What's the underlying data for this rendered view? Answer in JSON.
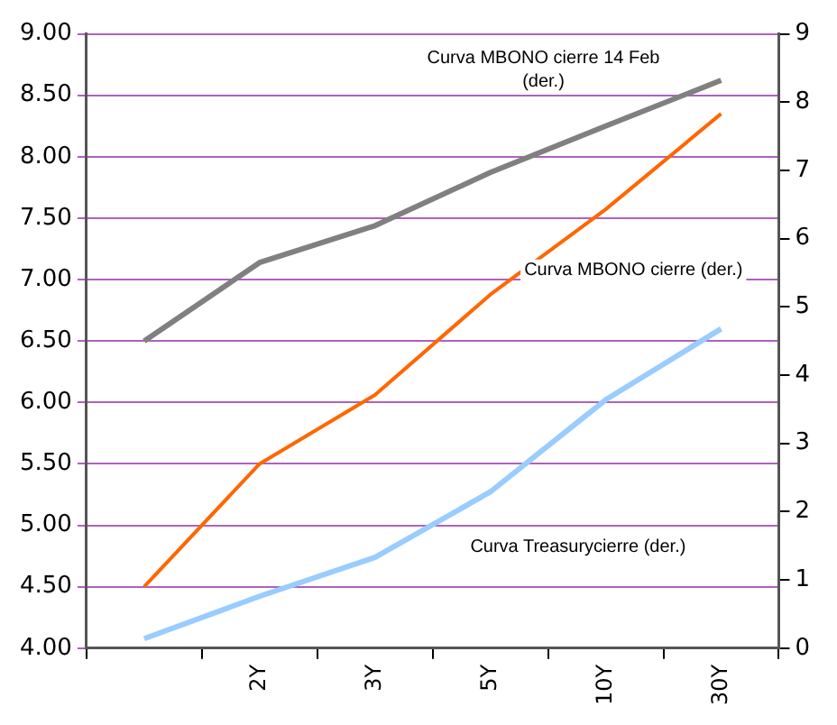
{
  "chart_data": {
    "type": "line",
    "categories": [
      null,
      "2Y",
      "3Y",
      "5Y",
      "10Y",
      "30Y"
    ],
    "series": [
      {
        "name": "Curva MBONO cierre 14 Feb (der.)",
        "color": "#808080",
        "axis": "y2",
        "values": [
          4.5,
          5.65,
          6.19,
          6.97,
          7.65,
          8.32
        ]
      },
      {
        "name": "Curva MBONO cierre (der.)",
        "color": "#ff6600",
        "axis": "y2",
        "values": [
          0.9,
          2.7,
          3.71,
          5.18,
          6.43,
          7.83
        ]
      },
      {
        "name": "Curva Treasurycierre (der.)",
        "color": "#99ccff",
        "axis": "y2",
        "values": [
          0.14,
          0.76,
          1.33,
          2.29,
          3.64,
          4.68
        ]
      }
    ],
    "ylim": [
      4,
      9
    ],
    "yticks": [
      {
        "value": 4,
        "label": "4.00"
      },
      {
        "value": 4.5,
        "label": "4.50"
      },
      {
        "value": 5,
        "label": "5.00"
      },
      {
        "value": 5.5,
        "label": "5.50"
      },
      {
        "value": 6,
        "label": "6.00"
      },
      {
        "value": 6.5,
        "label": "6.50"
      },
      {
        "value": 7,
        "label": "7.00"
      },
      {
        "value": 7.5,
        "label": "7.50"
      },
      {
        "value": 8,
        "label": "8.00"
      },
      {
        "value": 8.5,
        "label": "8.50"
      },
      {
        "value": 9,
        "label": "9.00"
      }
    ],
    "y2lim": [
      0,
      9
    ],
    "y2ticks": [
      0,
      1,
      2,
      3,
      4,
      5,
      6,
      7,
      8,
      9
    ],
    "grid": "y",
    "legend": false,
    "marker": "none",
    "line_style": "solid"
  }
}
